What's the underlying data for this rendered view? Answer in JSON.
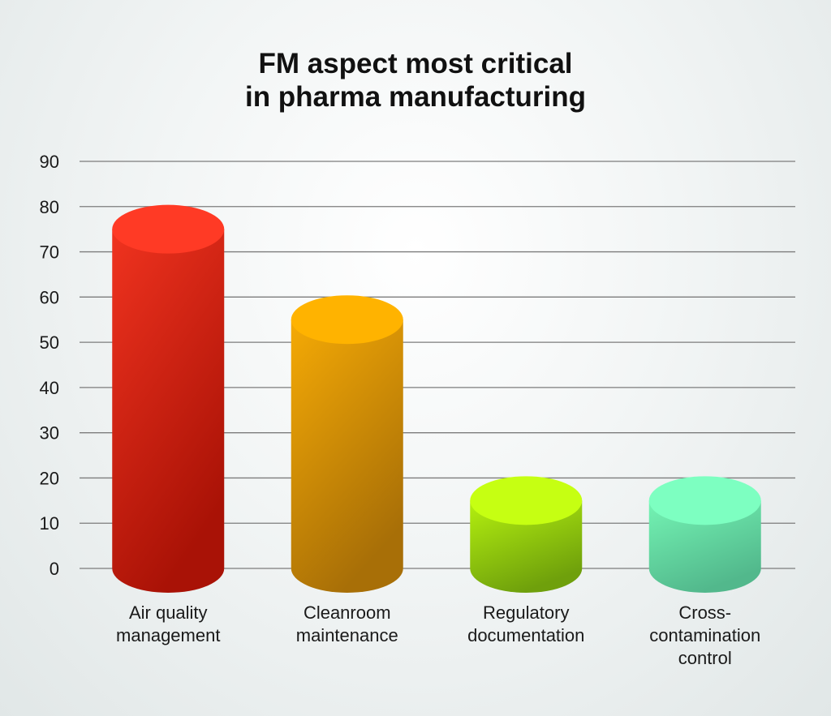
{
  "chart_data": {
    "type": "bar",
    "title_lines": [
      "FM aspect most critical",
      "in pharma manufacturing"
    ],
    "categories": [
      [
        "Air quality",
        "management"
      ],
      [
        "Cleanroom",
        "maintenance"
      ],
      [
        "Regulatory",
        "documentation"
      ],
      [
        "Cross-",
        "contamination",
        "control"
      ]
    ],
    "values": [
      75,
      55,
      15,
      15
    ],
    "ylim": [
      0,
      90
    ],
    "yticks": [
      "0",
      "10",
      "20",
      "30",
      "40",
      "50",
      "60",
      "70",
      "80",
      "90"
    ],
    "grid": true,
    "legend": "none",
    "bar_style": "cylinder",
    "colors": [
      {
        "top": "#ff3a25",
        "side_light": "#f0331f",
        "side_dark": "#a91206"
      },
      {
        "top": "#ffb300",
        "side_light": "#f5aa05",
        "side_dark": "#a86f07"
      },
      {
        "top": "#c6ff12",
        "side_light": "#b4f00f",
        "side_dark": "#6fa00c"
      },
      {
        "top": "#7dffc1",
        "side_light": "#74f4b4",
        "side_dark": "#52b88c"
      }
    ]
  }
}
